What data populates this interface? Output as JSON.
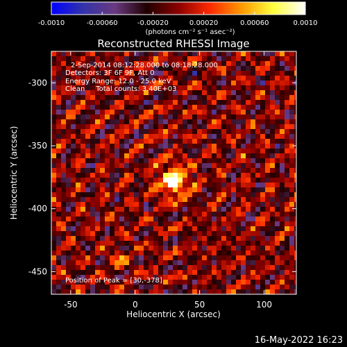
{
  "colorbar": {
    "ticks": [
      "-0.0010",
      "-0.00060",
      "-0.00020",
      "0.00020",
      "0.00060",
      "0.0010"
    ],
    "units": "(photons cm⁻² s⁻¹ asec⁻²)",
    "range": [
      -0.001,
      0.001
    ],
    "colors": [
      "#0000ff",
      "#3333aa",
      "#6a3a80",
      "#200000",
      "#8b0000",
      "#ff2a00",
      "#ff9a00",
      "#ffff40",
      "#ffffff"
    ]
  },
  "chart_data": {
    "type": "heatmap",
    "title": "Reconstructed RHESSI Image",
    "xlabel": "Heliocentric X (arcsec)",
    "ylabel": "Heliocentric Y (arcsec)",
    "xlim": [
      -65,
      125
    ],
    "ylim": [
      -468,
      -275
    ],
    "xticks": [
      "-50",
      "0",
      "50",
      "100"
    ],
    "xtick_values": [
      -50,
      0,
      50,
      100
    ],
    "yticks": [
      "-300",
      "-350",
      "-400",
      "-450"
    ],
    "ytick_values": [
      -300,
      -350,
      -400,
      -450
    ],
    "annotations": {
      "time": "2-Sep-2014 08:12:28.000 to 08:18:28.000",
      "detectors": "Detectors: 3F 6F 9F, Att 0",
      "energy": "Energy Range: 12.0 - 25.0 keV",
      "method": "Clean     Total counts: 3.40E+03",
      "peak": "Position of Peak = [30,-378]"
    },
    "peak": {
      "x": 30,
      "y": -378
    },
    "grid": false
  },
  "footer": {
    "timestamp": "16-May-2022 16:23"
  }
}
